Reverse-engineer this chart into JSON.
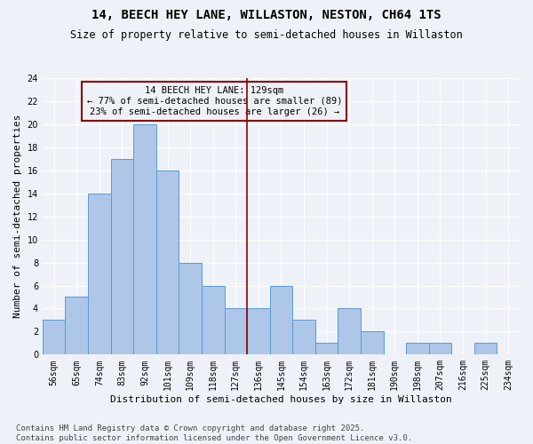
{
  "title": "14, BEECH HEY LANE, WILLASTON, NESTON, CH64 1TS",
  "subtitle": "Size of property relative to semi-detached houses in Willaston",
  "xlabel": "Distribution of semi-detached houses by size in Willaston",
  "ylabel": "Number of semi-detached properties",
  "categories": [
    "56sqm",
    "65sqm",
    "74sqm",
    "83sqm",
    "92sqm",
    "101sqm",
    "109sqm",
    "118sqm",
    "127sqm",
    "136sqm",
    "145sqm",
    "154sqm",
    "163sqm",
    "172sqm",
    "181sqm",
    "190sqm",
    "198sqm",
    "207sqm",
    "216sqm",
    "225sqm",
    "234sqm"
  ],
  "values": [
    3,
    5,
    14,
    17,
    20,
    16,
    8,
    6,
    4,
    4,
    6,
    3,
    1,
    4,
    2,
    0,
    1,
    1,
    0,
    1,
    0
  ],
  "bar_color": "#aec6e8",
  "bar_edge_color": "#5b9bd5",
  "property_bin_index": 8,
  "vline_color": "#8b0000",
  "annotation_title": "14 BEECH HEY LANE: 129sqm",
  "annotation_line1": "← 77% of semi-detached houses are smaller (89)",
  "annotation_line2": "23% of semi-detached houses are larger (26) →",
  "annotation_box_color": "#8b0000",
  "ylim": [
    0,
    24
  ],
  "yticks": [
    0,
    2,
    4,
    6,
    8,
    10,
    12,
    14,
    16,
    18,
    20,
    22,
    24
  ],
  "footer_line1": "Contains HM Land Registry data © Crown copyright and database right 2025.",
  "footer_line2": "Contains public sector information licensed under the Open Government Licence v3.0.",
  "bg_color": "#eef2f8",
  "grid_color": "#ffffff",
  "title_fontsize": 10,
  "subtitle_fontsize": 8.5,
  "axis_label_fontsize": 8,
  "tick_fontsize": 7,
  "annotation_fontsize": 7.5,
  "footer_fontsize": 6.5
}
